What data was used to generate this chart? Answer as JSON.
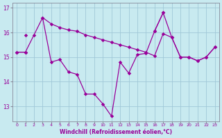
{
  "xlabel": "Windchill (Refroidissement éolien,°C)",
  "background_color": "#c8eaf0",
  "grid_color": "#a0c8d8",
  "line_color": "#990099",
  "x": [
    0,
    1,
    2,
    3,
    4,
    5,
    6,
    7,
    8,
    9,
    10,
    11,
    12,
    13,
    14,
    15,
    16,
    17,
    18,
    19,
    20,
    21,
    22,
    23
  ],
  "y_jagged": [
    15.2,
    15.2,
    15.9,
    16.6,
    14.8,
    14.9,
    14.4,
    14.3,
    13.5,
    13.5,
    13.1,
    12.6,
    14.8,
    14.35,
    15.1,
    15.15,
    16.05,
    16.8,
    null,
    null,
    null,
    null,
    null,
    null
  ],
  "y_upper": [
    null,
    15.9,
    null,
    16.6,
    16.35,
    16.2,
    16.1,
    16.05,
    15.9,
    15.8,
    15.7,
    15.6,
    15.5,
    15.4,
    15.3,
    15.2,
    15.05,
    15.95,
    15.8,
    15.0,
    15.0,
    14.85,
    15.0,
    15.4
  ],
  "y_lower": [
    15.2,
    15.2,
    null,
    null,
    null,
    null,
    null,
    null,
    null,
    null,
    null,
    null,
    null,
    null,
    null,
    null,
    16.05,
    16.8,
    15.8,
    15.0,
    15.0,
    14.85,
    15.0,
    15.4
  ],
  "ylim": [
    12.4,
    17.2
  ],
  "yticks": [
    13,
    14,
    15,
    16,
    17
  ],
  "xlim": [
    -0.5,
    23.5
  ]
}
